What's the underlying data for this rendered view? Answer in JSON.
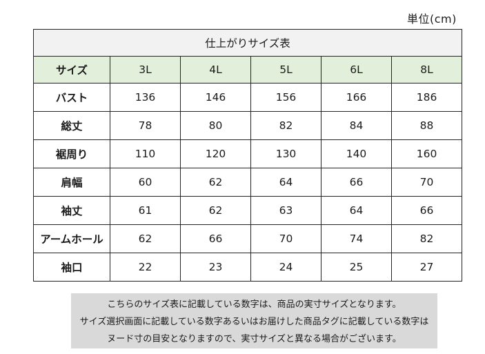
{
  "unit_label": "単位(cm)",
  "table": {
    "title": "仕上がりサイズ表",
    "header": {
      "label": "サイズ",
      "sizes": [
        "3L",
        "4L",
        "5L",
        "6L",
        "8L"
      ]
    },
    "rows": [
      {
        "label": "バスト",
        "values": [
          "136",
          "146",
          "156",
          "166",
          "186"
        ]
      },
      {
        "label": "総丈",
        "values": [
          "78",
          "80",
          "82",
          "84",
          "88"
        ]
      },
      {
        "label": "裾周り",
        "values": [
          "110",
          "120",
          "130",
          "140",
          "160"
        ]
      },
      {
        "label": "肩幅",
        "values": [
          "60",
          "62",
          "64",
          "66",
          "70"
        ]
      },
      {
        "label": "袖丈",
        "values": [
          "61",
          "62",
          "63",
          "64",
          "66"
        ]
      },
      {
        "label": "アームホール",
        "values": [
          "62",
          "66",
          "70",
          "74",
          "82"
        ]
      },
      {
        "label": "袖口",
        "values": [
          "22",
          "23",
          "24",
          "25",
          "27"
        ]
      }
    ]
  },
  "note": {
    "lines": [
      "こちらのサイズ表に記載している数字は、商品の実寸サイズとなります。",
      "サイズ選択画面に記載している数字あるいはお届けした商品タグに記載している数字は",
      "ヌード寸の目安となりますので、実寸サイズと異なる場合がございます。"
    ]
  }
}
